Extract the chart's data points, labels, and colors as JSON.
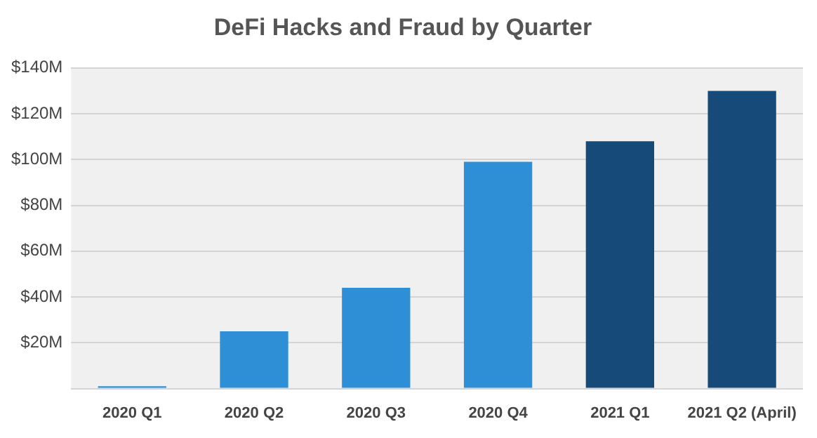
{
  "chart_data": {
    "type": "bar",
    "title": "DeFi Hacks and Fraud by Quarter",
    "categories": [
      "2020 Q1",
      "2020 Q2",
      "2020 Q3",
      "2020 Q4",
      "2021 Q1",
      "2021 Q2 (April)"
    ],
    "values": [
      1,
      25,
      44,
      99,
      108,
      130
    ],
    "colors": [
      "#2e8fd6",
      "#2e8fd6",
      "#2e8fd6",
      "#2e8fd6",
      "#164a78",
      "#164a78"
    ],
    "ylim": [
      0,
      140
    ],
    "yticks": [
      {
        "value": 0,
        "label": null
      },
      {
        "value": 20,
        "label": "$20M"
      },
      {
        "value": 40,
        "label": "$40M"
      },
      {
        "value": 60,
        "label": "$60M"
      },
      {
        "value": 80,
        "label": "$80M"
      },
      {
        "value": 100,
        "label": "$100M"
      },
      {
        "value": 120,
        "label": "$120M"
      },
      {
        "value": 140,
        "label": "$140M"
      }
    ],
    "grid": "y",
    "legend": false
  }
}
